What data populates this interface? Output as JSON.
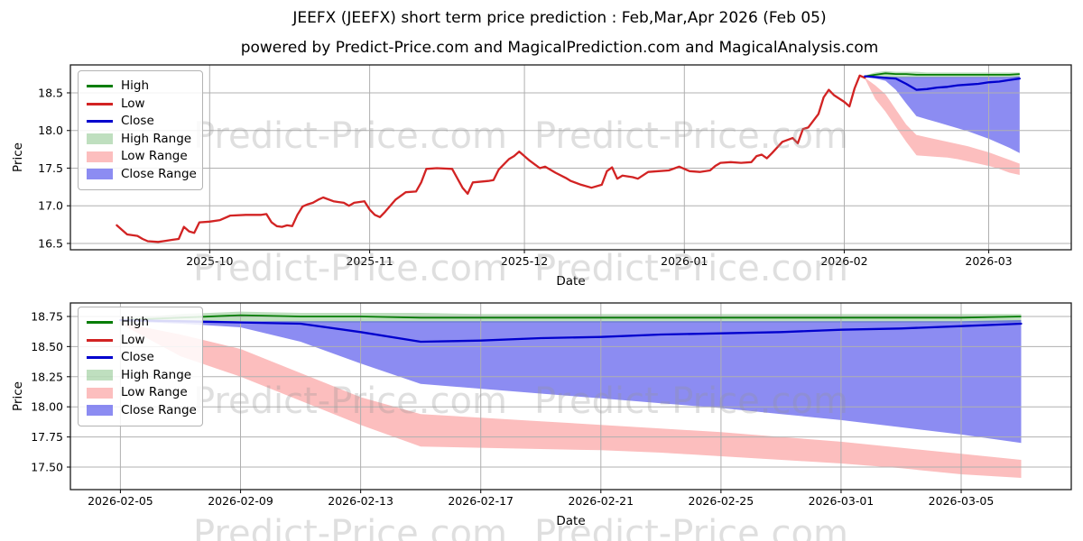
{
  "title": "JEEFX (JEEFX) short term price prediction : Feb,Mar,Apr 2026 (Feb 05)",
  "subtitle": "powered by Predict-Price.com and MagicalPrediction.com and MagicalAnalysis.com",
  "watermark_text": "Predict-Price.com",
  "legend": {
    "position": "upper left",
    "items": [
      {
        "label": "High",
        "type": "line",
        "color_key": "high_line"
      },
      {
        "label": "Low",
        "type": "line",
        "color_key": "low_line"
      },
      {
        "label": "Close",
        "type": "line",
        "color_key": "close_line"
      },
      {
        "label": "High Range",
        "type": "patch",
        "color_key": "high_range"
      },
      {
        "label": "Low Range",
        "type": "patch",
        "color_key": "low_range"
      },
      {
        "label": "Close Range",
        "type": "patch",
        "color_key": "close_range"
      }
    ]
  },
  "colors": {
    "high_line": "#067d06",
    "low_line": "#d22323",
    "close_line": "#0000cd",
    "high_range": "rgba(0,128,0,0.25)",
    "low_range": "rgba(245,40,40,0.30)",
    "close_range": "rgba(25,25,230,0.50)",
    "grid": "#b0b0b0",
    "spine": "#1a1a1a",
    "tick_label": "#000000",
    "watermark": "rgba(150,150,150,0.30)",
    "background": "#ffffff"
  },
  "chart_data": [
    {
      "id": "overview",
      "type": "line",
      "xlabel": "Date",
      "ylabel": "Price",
      "grid": true,
      "xlim": [
        "2025-09-04",
        "2026-03-17"
      ],
      "ylim": [
        16.416,
        18.871
      ],
      "x_ticks": [
        {
          "date": "2025-10-01",
          "label": "2025-10"
        },
        {
          "date": "2025-11-01",
          "label": "2025-11"
        },
        {
          "date": "2025-12-01",
          "label": "2025-12"
        },
        {
          "date": "2026-01-01",
          "label": "2026-01"
        },
        {
          "date": "2026-02-01",
          "label": "2026-02"
        },
        {
          "date": "2026-03-01",
          "label": "2026-03"
        }
      ],
      "y_ticks": [
        {
          "v": 16.5,
          "label": "16.5"
        },
        {
          "v": 17.0,
          "label": "17.0"
        },
        {
          "v": 17.5,
          "label": "17.5"
        },
        {
          "v": 18.0,
          "label": "18.0"
        },
        {
          "v": 18.5,
          "label": "18.5"
        }
      ],
      "history": {
        "name": "historical High/Low/Close (lines overlap, red Low on top)",
        "dates": [
          "2025-09-13",
          "2025-09-15",
          "2025-09-17",
          "2025-09-18",
          "2025-09-19",
          "2025-09-21",
          "2025-09-22",
          "2025-09-24",
          "2025-09-25",
          "2025-09-26",
          "2025-09-27",
          "2025-09-28",
          "2025-09-29",
          "2025-10-01",
          "2025-10-03",
          "2025-10-05",
          "2025-10-08",
          "2025-10-11",
          "2025-10-12",
          "2025-10-13",
          "2025-10-14",
          "2025-10-15",
          "2025-10-16",
          "2025-10-17",
          "2025-10-18",
          "2025-10-19",
          "2025-10-20",
          "2025-10-21",
          "2025-10-22",
          "2025-10-23",
          "2025-10-25",
          "2025-10-26",
          "2025-10-27",
          "2025-10-28",
          "2025-10-29",
          "2025-10-31",
          "2025-11-01",
          "2025-11-02",
          "2025-11-03",
          "2025-11-04",
          "2025-11-06",
          "2025-11-08",
          "2025-11-10",
          "2025-11-11",
          "2025-11-12",
          "2025-11-14",
          "2025-11-17",
          "2025-11-19",
          "2025-11-20",
          "2025-11-21",
          "2025-11-24",
          "2025-11-25",
          "2025-11-26",
          "2025-11-28",
          "2025-11-29",
          "2025-11-30",
          "2025-12-02",
          "2025-12-03",
          "2025-12-04",
          "2025-12-05",
          "2025-12-07",
          "2025-12-09",
          "2025-12-10",
          "2025-12-12",
          "2025-12-14",
          "2025-12-16",
          "2025-12-17",
          "2025-12-18",
          "2025-12-19",
          "2025-12-20",
          "2025-12-22",
          "2025-12-23",
          "2025-12-25",
          "2025-12-27",
          "2025-12-29",
          "2025-12-31",
          "2026-01-02",
          "2026-01-04",
          "2026-01-06",
          "2026-01-07",
          "2026-01-08",
          "2026-01-10",
          "2026-01-12",
          "2026-01-14",
          "2026-01-15",
          "2026-01-16",
          "2026-01-17",
          "2026-01-18",
          "2026-01-20",
          "2026-01-22",
          "2026-01-23",
          "2026-01-24",
          "2026-01-25",
          "2026-01-27",
          "2026-01-28",
          "2026-01-29",
          "2026-01-30",
          "2026-02-01",
          "2026-02-02",
          "2026-02-03",
          "2026-02-04",
          "2026-02-05"
        ],
        "values": [
          16.74,
          16.62,
          16.6,
          16.56,
          16.53,
          16.52,
          16.53,
          16.55,
          16.56,
          16.72,
          16.66,
          16.64,
          16.78,
          16.79,
          16.81,
          16.87,
          16.88,
          16.88,
          16.89,
          16.78,
          16.73,
          16.72,
          16.74,
          16.73,
          16.88,
          16.99,
          17.02,
          17.04,
          17.08,
          17.11,
          17.06,
          17.05,
          17.04,
          17.0,
          17.04,
          17.06,
          16.95,
          16.88,
          16.85,
          16.92,
          17.08,
          17.18,
          17.19,
          17.31,
          17.49,
          17.5,
          17.49,
          17.24,
          17.16,
          17.31,
          17.33,
          17.34,
          17.48,
          17.62,
          17.66,
          17.72,
          17.6,
          17.55,
          17.5,
          17.52,
          17.44,
          17.37,
          17.33,
          17.28,
          17.24,
          17.28,
          17.46,
          17.51,
          17.36,
          17.4,
          17.38,
          17.36,
          17.45,
          17.46,
          17.47,
          17.52,
          17.46,
          17.45,
          17.47,
          17.53,
          17.57,
          17.58,
          17.57,
          17.58,
          17.66,
          17.68,
          17.63,
          17.7,
          17.85,
          17.9,
          17.83,
          18.02,
          18.04,
          18.22,
          18.44,
          18.54,
          18.47,
          18.38,
          18.32,
          18.56,
          18.73,
          18.7
        ]
      },
      "forecast": {
        "dates": [
          "2026-02-05",
          "2026-02-07",
          "2026-02-09",
          "2026-02-11",
          "2026-02-13",
          "2026-02-15",
          "2026-02-17",
          "2026-02-19",
          "2026-02-21",
          "2026-02-23",
          "2026-02-25",
          "2026-02-27",
          "2026-03-01",
          "2026-03-03",
          "2026-03-05",
          "2026-03-07"
        ],
        "high_line": [
          18.72,
          18.74,
          18.76,
          18.75,
          18.75,
          18.74,
          18.74,
          18.74,
          18.74,
          18.74,
          18.74,
          18.74,
          18.74,
          18.74,
          18.74,
          18.75
        ],
        "close_line": [
          18.72,
          18.71,
          18.7,
          18.69,
          18.62,
          18.54,
          18.55,
          18.57,
          18.58,
          18.6,
          18.61,
          18.62,
          18.64,
          18.65,
          18.67,
          18.69
        ],
        "high_range": {
          "upper": [
            18.73,
            18.77,
            18.79,
            18.78,
            18.78,
            18.78,
            18.77,
            18.77,
            18.77,
            18.77,
            18.77,
            18.77,
            18.77,
            18.77,
            18.77,
            18.77
          ],
          "lower": [
            18.71,
            18.71,
            18.71,
            18.7,
            18.7,
            18.7,
            18.7,
            18.7,
            18.7,
            18.7,
            18.7,
            18.7,
            18.7,
            18.7,
            18.7,
            18.7
          ]
        },
        "low_range": {
          "upper": [
            18.7,
            18.6,
            18.48,
            18.28,
            18.08,
            17.94,
            17.91,
            17.88,
            17.85,
            17.82,
            17.79,
            17.75,
            17.71,
            17.66,
            17.61,
            17.56
          ],
          "lower": [
            18.69,
            18.42,
            18.25,
            18.05,
            17.85,
            17.67,
            17.66,
            17.65,
            17.64,
            17.62,
            17.59,
            17.56,
            17.53,
            17.49,
            17.44,
            17.41
          ]
        },
        "close_range": {
          "upper": [
            18.72,
            18.72,
            18.71,
            18.71,
            18.71,
            18.71,
            18.71,
            18.71,
            18.71,
            18.71,
            18.71,
            18.71,
            18.71,
            18.71,
            18.71,
            18.72
          ],
          "lower": [
            18.71,
            18.69,
            18.66,
            18.54,
            18.36,
            18.19,
            18.15,
            18.11,
            18.07,
            18.03,
            17.99,
            17.94,
            17.89,
            17.83,
            17.77,
            17.7
          ]
        }
      }
    },
    {
      "id": "forecast-zoom",
      "type": "line",
      "xlabel": "Date",
      "ylabel": "Price",
      "grid": true,
      "note": "zoomed view of the forecast period; series identical to overview forecast",
      "xlim": [
        "2026-02-03T08:00:00",
        "2026-03-08T16:00:00"
      ],
      "ylim": [
        17.313,
        18.862
      ],
      "x_ticks": [
        {
          "date": "2026-02-05",
          "label": "2026-02-05"
        },
        {
          "date": "2026-02-09",
          "label": "2026-02-09"
        },
        {
          "date": "2026-02-13",
          "label": "2026-02-13"
        },
        {
          "date": "2026-02-17",
          "label": "2026-02-17"
        },
        {
          "date": "2026-02-21",
          "label": "2026-02-21"
        },
        {
          "date": "2026-02-25",
          "label": "2026-02-25"
        },
        {
          "date": "2026-03-01",
          "label": "2026-03-01"
        },
        {
          "date": "2026-03-05",
          "label": "2026-03-05"
        }
      ],
      "y_ticks": [
        {
          "v": 17.5,
          "label": "17.50"
        },
        {
          "v": 17.75,
          "label": "17.75"
        },
        {
          "v": 18.0,
          "label": "18.00"
        },
        {
          "v": 18.25,
          "label": "18.25"
        },
        {
          "v": 18.5,
          "label": "18.50"
        },
        {
          "v": 18.75,
          "label": "18.75"
        }
      ]
    }
  ]
}
